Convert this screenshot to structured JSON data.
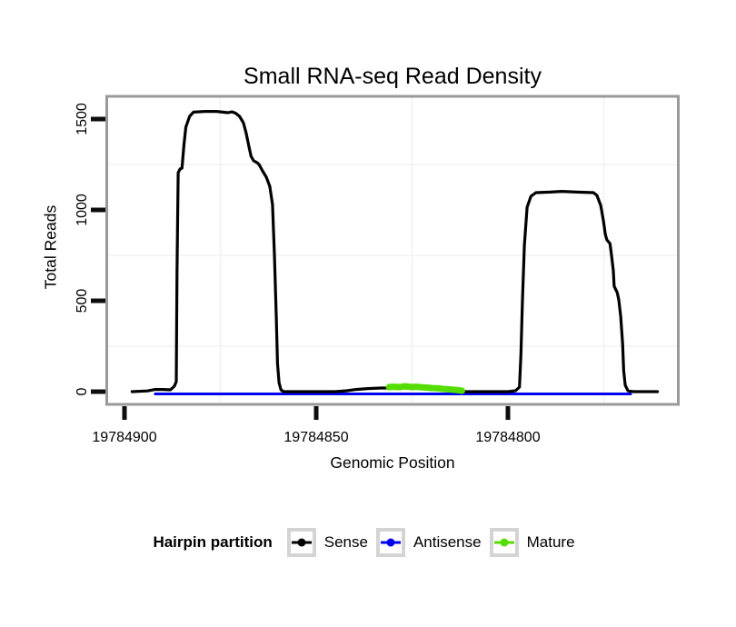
{
  "title": "Small RNA-seq Read Density",
  "colors": {
    "background": "#FFFFFF",
    "sense": "#000000",
    "antisense": "#0000EE",
    "mature": "#55DD00",
    "panel_border": "#999999",
    "tick": "#0D0D0D",
    "tick_label": "#000000",
    "grid_minor": "#F2F2F2",
    "legend_key_border": "#D4D4D4"
  },
  "legend": {
    "title": "Hairpin partition",
    "entries": [
      {
        "label": "Sense",
        "color": "#000000"
      },
      {
        "label": "Antisense",
        "color": "#0000EE"
      },
      {
        "label": "Mature",
        "color": "#55DD00"
      }
    ]
  },
  "chart_data": {
    "type": "line",
    "title": "Small RNA-seq Read Density",
    "xlabel": "Genomic Position",
    "ylabel": "Total Reads",
    "x_reversed": true,
    "legend_title": "Hairpin partition",
    "legend_position": "bottom",
    "x_axis": {
      "ticks": [
        {
          "value": 19784900,
          "label": "19784900"
        },
        {
          "value": 19784850,
          "label": "19784850"
        },
        {
          "value": 19784800,
          "label": "19784800"
        }
      ],
      "minor": [
        19784875,
        19784825,
        19784775
      ],
      "domain": [
        19784905,
        19784755
      ]
    },
    "y_axis": {
      "ticks": [
        {
          "value": 0,
          "label": "0"
        },
        {
          "value": 500,
          "label": "500"
        },
        {
          "value": 1000,
          "label": "1000"
        },
        {
          "value": 1500,
          "label": "1500"
        }
      ],
      "minor": [
        250,
        750,
        1250
      ],
      "domain": [
        -70,
        1630
      ]
    },
    "series": [
      {
        "name": "Sense",
        "color": "#000000",
        "points": [
          [
            19784898,
            0
          ],
          [
            19784894,
            4
          ],
          [
            19784892,
            12
          ],
          [
            19784890,
            12
          ],
          [
            19784888,
            10
          ],
          [
            19784887,
            30
          ],
          [
            19784886.5,
            55
          ],
          [
            19784886.3,
            655
          ],
          [
            19784886,
            1205
          ],
          [
            19784885.5,
            1225
          ],
          [
            19784885,
            1230
          ],
          [
            19784884.5,
            1355
          ],
          [
            19784884,
            1455
          ],
          [
            19784883,
            1515
          ],
          [
            19784882,
            1538
          ],
          [
            19784879,
            1542
          ],
          [
            19784876,
            1542
          ],
          [
            19784873,
            1535
          ],
          [
            19784872,
            1540
          ],
          [
            19784871,
            1532
          ],
          [
            19784870,
            1515
          ],
          [
            19784869,
            1480
          ],
          [
            19784868.3,
            1425
          ],
          [
            19784867.6,
            1355
          ],
          [
            19784867,
            1295
          ],
          [
            19784866.3,
            1270
          ],
          [
            19784865.4,
            1260
          ],
          [
            19784864.9,
            1250
          ],
          [
            19784864,
            1215
          ],
          [
            19784863,
            1180
          ],
          [
            19784862.1,
            1130
          ],
          [
            19784861.4,
            1030
          ],
          [
            19784860.9,
            755
          ],
          [
            19784860.4,
            405
          ],
          [
            19784860.1,
            155
          ],
          [
            19784859.7,
            50
          ],
          [
            19784859.2,
            10
          ],
          [
            19784858.5,
            0
          ],
          [
            19784845,
            0
          ],
          [
            19784842,
            5
          ],
          [
            19784839.6,
            12
          ],
          [
            19784836.5,
            17
          ],
          [
            19784833,
            20
          ],
          [
            19784824,
            20
          ],
          [
            19784816,
            10
          ],
          [
            19784811,
            0
          ],
          [
            19784800,
            0
          ],
          [
            19784798,
            5
          ],
          [
            19784797,
            25
          ],
          [
            19784796.6,
            205
          ],
          [
            19784796.2,
            505
          ],
          [
            19784795.7,
            805
          ],
          [
            19784795,
            1015
          ],
          [
            19784794,
            1075
          ],
          [
            19784792.7,
            1095
          ],
          [
            19784789,
            1098
          ],
          [
            19784786,
            1102
          ],
          [
            19784782,
            1098
          ],
          [
            19784777.7,
            1095
          ],
          [
            19784776.8,
            1080
          ],
          [
            19784775.8,
            1025
          ],
          [
            19784775.1,
            940
          ],
          [
            19784774.6,
            865
          ],
          [
            19784774.2,
            835
          ],
          [
            19784773.4,
            815
          ],
          [
            19784773,
            755
          ],
          [
            19784772.5,
            665
          ],
          [
            19784772.3,
            580
          ],
          [
            19784771.5,
            545
          ],
          [
            19784771.1,
            505
          ],
          [
            19784770.6,
            415
          ],
          [
            19784770.1,
            265
          ],
          [
            19784769.8,
            115
          ],
          [
            19784769.4,
            35
          ],
          [
            19784768.7,
            5
          ],
          [
            19784767.3,
            0
          ],
          [
            19784761,
            0
          ]
        ]
      },
      {
        "name": "Antisense",
        "color": "#0000EE",
        "points": [
          [
            19784892,
            0
          ],
          [
            19784768,
            0
          ]
        ]
      },
      {
        "name": "Mature",
        "color": "#55DD00",
        "points": [
          [
            19784831,
            25
          ],
          [
            19784830,
            27
          ],
          [
            19784828,
            25
          ],
          [
            19784827,
            30
          ],
          [
            19784825,
            25
          ],
          [
            19784824,
            27
          ],
          [
            19784823,
            25
          ],
          [
            19784821,
            22
          ],
          [
            19784820,
            20
          ],
          [
            19784818,
            18
          ],
          [
            19784817,
            15
          ],
          [
            19784815,
            12
          ],
          [
            19784814,
            10
          ],
          [
            19784813,
            8
          ],
          [
            19784812,
            5
          ]
        ]
      }
    ]
  }
}
